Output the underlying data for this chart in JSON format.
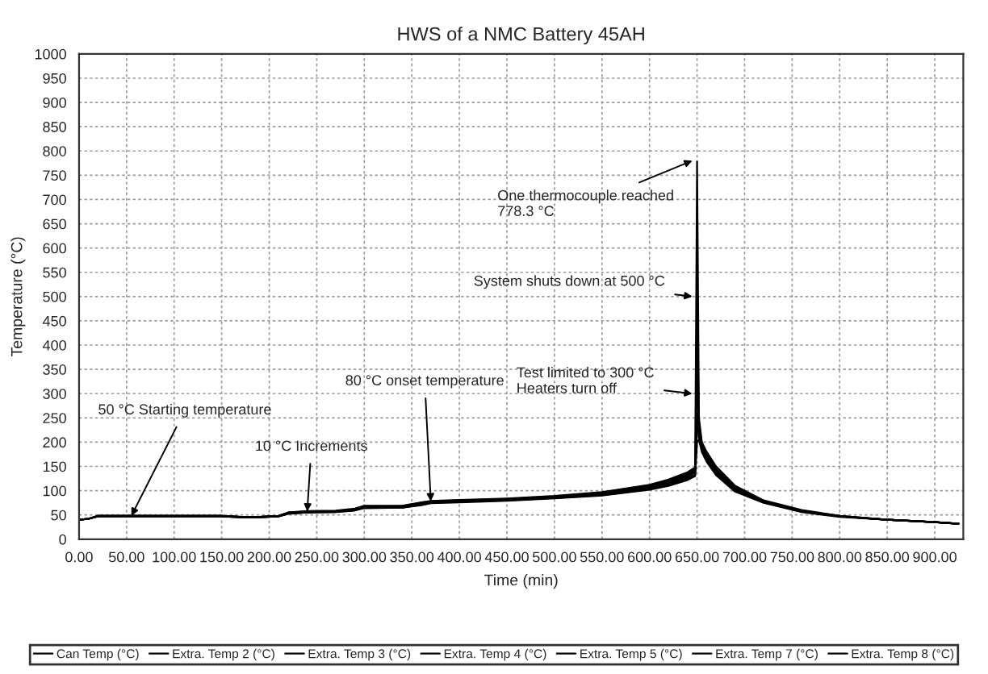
{
  "chart_data": {
    "type": "line",
    "title": "HWS of a NMC Battery 45AH",
    "xlabel": "Time (min)",
    "ylabel": "Temperature (°C)",
    "x": [
      0,
      10,
      20,
      50,
      100,
      150,
      170,
      190,
      210,
      220,
      240,
      270,
      290,
      300,
      340,
      360,
      370,
      400,
      450,
      500,
      550,
      600,
      620,
      640,
      648,
      650,
      652,
      655,
      660,
      670,
      690,
      720,
      760,
      800,
      850,
      900,
      925
    ],
    "series": [
      {
        "name": "Can Temp (°C)",
        "color": "#000000",
        "values": [
          40,
          42,
          48,
          48,
          48,
          48,
          46,
          46,
          48,
          55,
          57,
          58,
          62,
          68,
          68,
          75,
          78,
          80,
          83,
          88,
          95,
          110,
          120,
          135,
          145,
          220,
          250,
          200,
          180,
          150,
          110,
          80,
          60,
          48,
          40,
          35,
          32
        ]
      },
      {
        "name": "Extra. Temp 2 (°C)",
        "color": "#000000",
        "values": [
          40,
          42,
          47,
          47,
          47,
          47,
          45,
          45,
          47,
          53,
          56,
          57,
          60,
          66,
          66,
          72,
          76,
          78,
          81,
          86,
          93,
          105,
          115,
          128,
          138,
          340,
          230,
          190,
          170,
          140,
          105,
          78,
          58,
          47,
          40,
          35,
          32
        ]
      },
      {
        "name": "Extra. Temp 3 (°C)",
        "color": "#000000",
        "values": [
          40,
          42,
          48,
          48,
          48,
          48,
          46,
          46,
          48,
          54,
          57,
          58,
          61,
          67,
          67,
          74,
          77,
          79,
          82,
          87,
          94,
          108,
          118,
          132,
          142,
          778.3,
          240,
          195,
          175,
          145,
          108,
          79,
          59,
          48,
          40,
          35,
          32
        ]
      },
      {
        "name": "Extra. Temp 4 (°C)",
        "color": "#000000",
        "values": [
          40,
          42,
          47,
          47,
          47,
          47,
          45,
          45,
          47,
          52,
          55,
          56,
          59,
          64,
          65,
          70,
          74,
          76,
          79,
          84,
          90,
          102,
          110,
          122,
          130,
          500,
          210,
          185,
          165,
          135,
          100,
          76,
          57,
          47,
          40,
          35,
          32
        ]
      },
      {
        "name": "Extra. Temp 5 (°C)",
        "color": "#000000",
        "values": [
          40,
          42,
          48,
          48,
          48,
          48,
          46,
          46,
          48,
          55,
          58,
          59,
          63,
          69,
          69,
          76,
          79,
          81,
          84,
          89,
          97,
          112,
          123,
          138,
          148,
          230,
          225,
          195,
          172,
          142,
          104,
          78,
          58,
          47,
          40,
          35,
          32
        ]
      },
      {
        "name": "Extra. Temp 7 (°C)",
        "color": "#000000",
        "values": [
          40,
          42,
          47,
          47,
          47,
          47,
          45,
          45,
          47,
          53,
          55,
          56,
          60,
          65,
          65,
          71,
          75,
          77,
          80,
          85,
          91,
          103,
          112,
          125,
          133,
          200,
          205,
          180,
          160,
          132,
          98,
          75,
          56,
          46,
          40,
          35,
          32
        ]
      },
      {
        "name": "Extra. Temp 8 (°C)",
        "color": "#000000",
        "values": [
          40,
          42,
          48,
          48,
          48,
          48,
          46,
          46,
          48,
          54,
          56,
          57,
          61,
          66,
          66,
          73,
          76,
          78,
          81,
          86,
          92,
          106,
          116,
          130,
          140,
          260,
          215,
          188,
          168,
          138,
          102,
          77,
          57,
          47,
          40,
          35,
          32
        ]
      }
    ],
    "xlim": [
      0,
      930
    ],
    "xticks": [
      {
        "value": 0,
        "label": "0.00"
      },
      {
        "value": 50,
        "label": "50.00"
      },
      {
        "value": 100,
        "label": "100.00"
      },
      {
        "value": 150,
        "label": "150.00"
      },
      {
        "value": 200,
        "label": "200.00"
      },
      {
        "value": 250,
        "label": "250.00"
      },
      {
        "value": 300,
        "label": "300.00"
      },
      {
        "value": 350,
        "label": "350.00"
      },
      {
        "value": 400,
        "label": "400.00"
      },
      {
        "value": 450,
        "label": "450.00"
      },
      {
        "value": 500,
        "label": "500.00"
      },
      {
        "value": 550,
        "label": "550.00"
      },
      {
        "value": 600,
        "label": "600.00"
      },
      {
        "value": 650,
        "label": "650.00"
      },
      {
        "value": 700,
        "label": "700.00"
      },
      {
        "value": 750,
        "label": "750.00"
      },
      {
        "value": 800,
        "label": "800.00"
      },
      {
        "value": 850,
        "label": "850.00"
      },
      {
        "value": 900,
        "label": "900.00"
      }
    ],
    "ylim": [
      0,
      1000
    ],
    "yticks": [
      0,
      50,
      100,
      150,
      200,
      250,
      300,
      350,
      400,
      450,
      500,
      550,
      600,
      650,
      700,
      750,
      800,
      850,
      900,
      950,
      1000
    ],
    "grid": true,
    "legend": "bottom",
    "marker": "none",
    "line_style": "solid",
    "annotations": [
      {
        "text": "50 °C Starting temperature",
        "x": 55,
        "y": 48
      },
      {
        "text": "10 °C Increments",
        "x": 240,
        "y": 57
      },
      {
        "text": "80 °C onset temperature",
        "x": 370,
        "y": 78
      },
      {
        "text": "Test limited to 300 °C\nHeaters turn off",
        "x": 645,
        "y": 300
      },
      {
        "text": "System shuts down at 500 °C",
        "x": 645,
        "y": 500
      },
      {
        "text": "One thermocouple reached\n778.3 °C",
        "x": 645,
        "y": 780
      }
    ]
  }
}
